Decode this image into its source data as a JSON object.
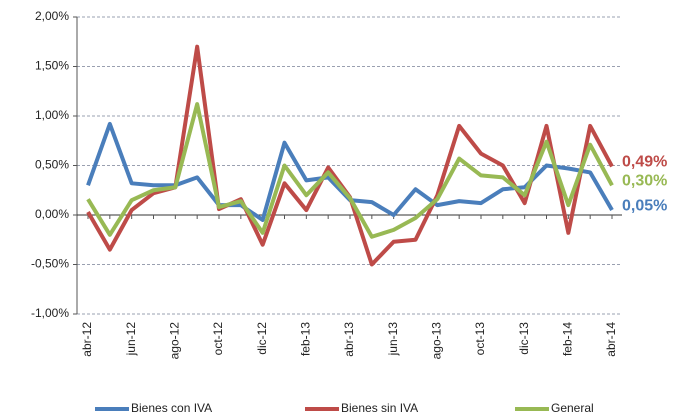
{
  "chart_data": {
    "type": "line",
    "categories": [
      "abr-12",
      null,
      "jun-12",
      null,
      "ago-12",
      null,
      "oct-12",
      null,
      "dic-12",
      null,
      "feb-13",
      null,
      "abr-13",
      null,
      "jun-13",
      null,
      "ago-13",
      null,
      "oct-13",
      null,
      "dic-13",
      null,
      "feb-14",
      null,
      "abr-14"
    ],
    "ylim": [
      -1,
      2
    ],
    "yticks": [
      {
        "value": -1,
        "label": "-1,00%"
      },
      {
        "value": -0.5,
        "label": "-0,50%"
      },
      {
        "value": 0,
        "label": "0,00%"
      },
      {
        "value": 0.5,
        "label": "0,50%"
      },
      {
        "value": 1,
        "label": "1,00%"
      },
      {
        "value": 1.5,
        "label": "1,50%"
      },
      {
        "value": 2,
        "label": "2,00%"
      }
    ],
    "grid": true,
    "legend": "bottom",
    "series": [
      {
        "name": "Bienes con IVA",
        "color": "#4a7ebb",
        "values": [
          0.3,
          0.92,
          0.32,
          0.3,
          0.3,
          0.38,
          0.1,
          0.1,
          -0.05,
          0.73,
          0.35,
          0.38,
          0.15,
          0.13,
          0.0,
          0.26,
          0.1,
          0.14,
          0.12,
          0.26,
          0.28,
          0.5,
          0.47,
          0.43,
          0.05
        ],
        "value_labels": [
          null,
          null,
          null,
          null,
          null,
          null,
          null,
          null,
          null,
          null,
          null,
          null,
          null,
          null,
          null,
          null,
          null,
          null,
          null,
          null,
          null,
          null,
          null,
          null,
          "0,05%"
        ]
      },
      {
        "name": "Bienes sin IVA",
        "color": "#be4b48",
        "values": [
          0.03,
          -0.35,
          0.05,
          0.22,
          0.28,
          1.7,
          0.06,
          0.16,
          -0.3,
          0.32,
          0.05,
          0.48,
          0.18,
          -0.5,
          -0.27,
          -0.25,
          0.2,
          0.9,
          0.62,
          0.5,
          0.12,
          0.9,
          -0.18,
          0.9,
          0.49
        ],
        "value_labels": [
          null,
          null,
          null,
          null,
          null,
          null,
          null,
          null,
          null,
          null,
          null,
          null,
          null,
          null,
          null,
          null,
          null,
          null,
          null,
          null,
          null,
          null,
          null,
          null,
          "0,49%"
        ]
      },
      {
        "name": "General",
        "color": "#98b954",
        "values": [
          0.16,
          -0.2,
          0.15,
          0.25,
          0.28,
          1.12,
          0.08,
          0.14,
          -0.18,
          0.5,
          0.2,
          0.43,
          0.17,
          -0.22,
          -0.15,
          -0.03,
          0.16,
          0.57,
          0.4,
          0.38,
          0.2,
          0.74,
          0.1,
          0.71,
          0.3
        ],
        "value_labels": [
          null,
          null,
          null,
          null,
          null,
          null,
          null,
          null,
          null,
          null,
          null,
          null,
          null,
          null,
          null,
          null,
          null,
          null,
          null,
          null,
          null,
          null,
          null,
          null,
          "0,30%"
        ]
      }
    ]
  }
}
